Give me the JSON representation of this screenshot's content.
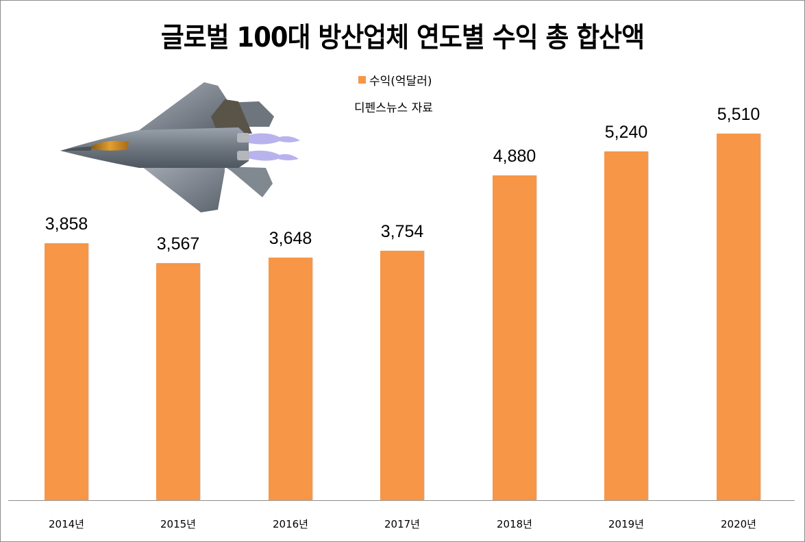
{
  "chart_data": {
    "type": "bar",
    "title": "글로벌 100대 방산업체 연도별 수익 총 합산액",
    "subtitle": "디펜스뉴스 자료",
    "legend": [
      {
        "name": "수익(억달러)",
        "color": "#f79646"
      }
    ],
    "legend_position": "top",
    "categories": [
      "2014년",
      "2015년",
      "2016년",
      "2017년",
      "2018년",
      "2019년",
      "2020년"
    ],
    "series": [
      {
        "name": "수익(억달러)",
        "values": [
          3858,
          3567,
          3648,
          3754,
          4880,
          5240,
          5510
        ]
      }
    ],
    "value_labels": [
      "3,858",
      "3,567",
      "3,648",
      "3,754",
      "4,880",
      "5,240",
      "5,510"
    ],
    "xlabel": "",
    "ylabel": "",
    "ylim": [
      0,
      5510
    ],
    "grid": false,
    "bar_color": "#f79646"
  },
  "header": {
    "title": "글로벌 100대 방산업체 연도별 수익 총 합산액",
    "legend_label": "수익(억달러)",
    "source": "디펜스뉴스 자료"
  },
  "decoration": {
    "image": "fighter-jet-icon"
  }
}
